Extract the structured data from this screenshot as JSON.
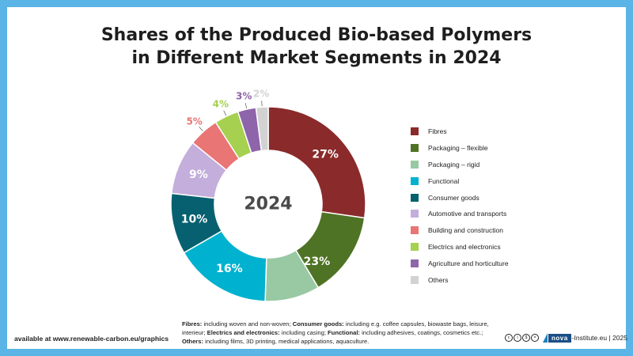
{
  "title_lines": [
    "Shares of the Produced Bio-based Polymers",
    "in Different Market Segments in 2024"
  ],
  "chart_data": {
    "type": "donut",
    "title": "Shares of the Produced Bio-based Polymers in Different Market Segments in 2024",
    "center_label": "2024",
    "unit": "%",
    "segments": [
      {
        "label": "Fibres",
        "value": 27,
        "value_label": "27%",
        "color": "#8b2a2a"
      },
      {
        "label": "Packaging – flexible",
        "value": 14,
        "value_label": "",
        "color": "#4f7325"
      },
      {
        "label": "Packaging – rigid",
        "value": 9,
        "value_label": "",
        "color": "#98c9a3"
      },
      {
        "label": "Functional",
        "value": 16,
        "value_label": "16%",
        "color": "#00b2cf"
      },
      {
        "label": "Consumer goods",
        "value": 10,
        "value_label": "10%",
        "color": "#06606f"
      },
      {
        "label": "Automotive and transports",
        "value": 9,
        "value_label": "9%",
        "color": "#c3aedc"
      },
      {
        "label": "Building and construction",
        "value": 5,
        "value_label": "5%",
        "color": "#ea7575"
      },
      {
        "label": "Electrics and electronics",
        "value": 4,
        "value_label": "4%",
        "color": "#a6d04f"
      },
      {
        "label": "Agriculture and horticulture",
        "value": 3,
        "value_label": "3%",
        "color": "#8e64aa"
      },
      {
        "label": "Others",
        "value": 2,
        "value_label": "2%",
        "color": "#d2d2d2"
      }
    ],
    "group_labels": [
      {
        "text": "23%",
        "segments": [
          "Packaging – flexible",
          "Packaging – rigid"
        ]
      }
    ]
  },
  "footnote": {
    "fibres_label": "Fibres:",
    "fibres_text": " including woven and non-woven; ",
    "consumer_label": "Consumer goods:",
    "consumer_text": " including e.g. coffee capsules, biowaste bags, leisure, interieur; ",
    "electrics_label": "Electrics and electronics:",
    "electrics_text": " including casing; ",
    "functional_label": "Functional:",
    "functional_text": " including adhesives, coatings, cosmetics etc.;",
    "others_label": "Others:",
    "others_text": " including films, 3D printing, medical applications, aquaculture."
  },
  "source_text": "available at www.renewable-carbon.eu/graphics",
  "credit": {
    "cc_icons": [
      "cc",
      "by",
      "nc",
      "nd"
    ],
    "logo_text": "nova",
    "site_text": "-Institute.eu | 2025"
  }
}
